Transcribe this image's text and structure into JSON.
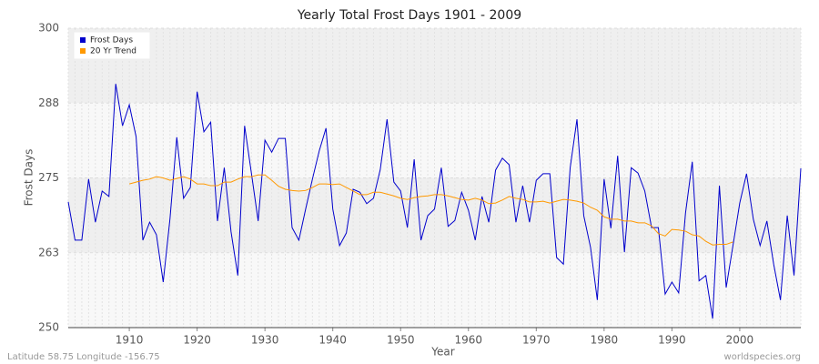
{
  "chart_data": {
    "type": "line",
    "title": "Yearly Total Frost Days 1901 - 2009",
    "x_label": "Year",
    "y_label": "Frost Days",
    "footer_left": "Latitude 58.75 Longitude -156.75",
    "footer_right": "worldspecies.org",
    "x": [
      1901,
      1902,
      1903,
      1904,
      1905,
      1906,
      1907,
      1908,
      1909,
      1910,
      1911,
      1912,
      1913,
      1914,
      1915,
      1916,
      1917,
      1918,
      1919,
      1920,
      1921,
      1922,
      1923,
      1924,
      1925,
      1926,
      1927,
      1928,
      1929,
      1930,
      1931,
      1932,
      1933,
      1934,
      1935,
      1936,
      1937,
      1938,
      1939,
      1940,
      1941,
      1942,
      1943,
      1944,
      1945,
      1946,
      1947,
      1948,
      1949,
      1950,
      1951,
      1952,
      1953,
      1954,
      1955,
      1956,
      1957,
      1958,
      1959,
      1960,
      1961,
      1962,
      1963,
      1964,
      1965,
      1966,
      1967,
      1968,
      1969,
      1970,
      1971,
      1972,
      1973,
      1974,
      1975,
      1976,
      1977,
      1978,
      1979,
      1980,
      1981,
      1982,
      1983,
      1984,
      1985,
      1986,
      1987,
      1988,
      1989,
      1990,
      1991,
      1992,
      1993,
      1994,
      1995,
      1996,
      1997,
      1998,
      1999,
      2000,
      2001,
      2002,
      2003,
      2004,
      2005,
      2006,
      2007,
      2008,
      2009
    ],
    "series": [
      {
        "name": "Frost Days",
        "color": "#0000cc",
        "values": [
          271,
          264.6,
          264.6,
          274.8,
          267.6,
          272.8,
          271.9,
          290.7,
          283.7,
          287.2,
          281.9,
          264.6,
          267.6,
          265.5,
          257.6,
          268.2,
          281.8,
          271.6,
          273.4,
          289.4,
          282.7,
          284.3,
          267.8,
          276.7,
          266,
          258.7,
          283.7,
          275.8,
          267.8,
          281.3,
          279.3,
          281.6,
          281.6,
          266.7,
          264.6,
          269.8,
          274.8,
          279.5,
          283.3,
          269.8,
          263.7,
          265.8,
          273.1,
          272.6,
          270.7,
          271.6,
          276.4,
          284.8,
          274.3,
          272.8,
          266.7,
          278.1,
          264.6,
          268.7,
          269.8,
          276.7,
          266.9,
          267.9,
          272.6,
          269.6,
          264.6,
          271.9,
          267.6,
          276.3,
          278.3,
          277.2,
          267.6,
          273.7,
          267.6,
          274.6,
          275.7,
          275.7,
          261.7,
          260.6,
          276.7,
          284.8,
          268.7,
          263.4,
          254.6,
          274.8,
          266.6,
          278.7,
          262.6,
          276.7,
          275.8,
          272.8,
          266.7,
          266.7,
          255.6,
          257.6,
          255.8,
          269.1,
          277.7,
          257.8,
          258.7,
          251.5,
          273.7,
          256.7,
          263.7,
          270.8,
          275.7,
          268.1,
          263.7,
          267.8,
          260.6,
          254.6,
          268.7,
          258.7,
          276.6
        ]
      },
      {
        "name": "20 Yr Trend",
        "color": "#ff9900",
        "values": [
          null,
          null,
          null,
          null,
          null,
          null,
          null,
          null,
          null,
          274,
          274.3,
          274.6,
          274.8,
          275.2,
          275,
          274.6,
          274.9,
          275.2,
          274.8,
          274,
          274,
          273.7,
          273.7,
          274.3,
          274.3,
          274.8,
          275.2,
          275.2,
          275.5,
          275.5,
          274.6,
          273.6,
          273.1,
          272.9,
          272.8,
          272.9,
          273.4,
          274,
          274,
          273.9,
          274,
          273.4,
          272.8,
          272.2,
          272.2,
          272.6,
          272.6,
          272.3,
          272,
          271.6,
          271.4,
          271.7,
          271.9,
          272,
          272.2,
          272.2,
          272,
          271.7,
          271.4,
          271.3,
          271.6,
          271.3,
          270.7,
          270.8,
          271.3,
          271.9,
          271.6,
          271.4,
          271,
          271,
          271.1,
          270.8,
          271.1,
          271.4,
          271.3,
          271.1,
          270.8,
          270.1,
          269.6,
          268.5,
          268.1,
          268.1,
          267.8,
          267.8,
          267.5,
          267.5,
          267,
          265.7,
          265.3,
          266.4,
          266.3,
          266.1,
          265.5,
          265.3,
          264.4,
          263.8,
          263.9,
          263.9,
          264.3,
          null,
          null,
          null,
          null,
          null,
          null,
          null,
          null,
          null,
          null
        ]
      }
    ],
    "xlim": [
      1901,
      2009
    ],
    "ylim": [
      250,
      300
    ],
    "xticks": [
      1910,
      1920,
      1930,
      1940,
      1950,
      1960,
      1970,
      1980,
      1990,
      2000
    ],
    "yticks": [
      250,
      {
        "value": 262.5,
        "label": "263"
      },
      275,
      {
        "value": 287.5,
        "label": "288"
      },
      300
    ],
    "grid": true,
    "legend": "top-left"
  }
}
